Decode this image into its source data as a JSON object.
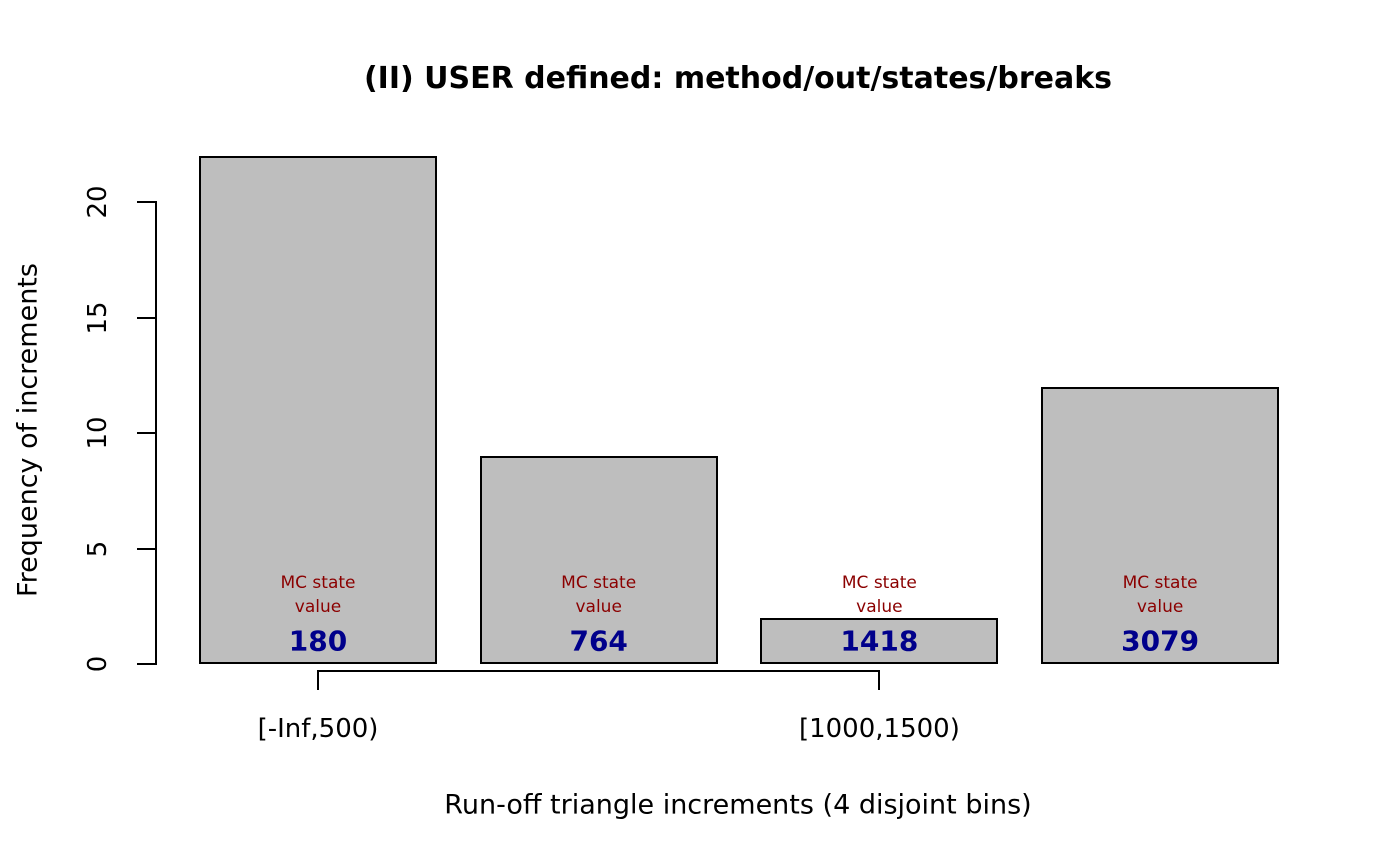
{
  "chart_data": {
    "type": "bar",
    "title": "(II) USER defined: method/out/states/breaks",
    "xlabel": "Run-off triangle increments (4 disjoint bins)",
    "ylabel": "Frequency of increments",
    "categories": [
      "[-Inf,500)",
      "",
      "[1000,1500)",
      ""
    ],
    "values": [
      22,
      9,
      2,
      12
    ],
    "yticks": [
      "0",
      "5",
      "10",
      "15",
      "20"
    ],
    "ytick_values": [
      0,
      5,
      10,
      15,
      20
    ],
    "ylim": [
      0,
      22
    ],
    "grid": false,
    "legend": "none",
    "annotations": {
      "heading_lines": [
        "MC state",
        "value"
      ],
      "values": [
        "180",
        "764",
        "1418",
        "3079"
      ]
    },
    "colors": {
      "background": "#FFFFFF",
      "bar_fill": "#BEBEBE",
      "bar_border": "#000000",
      "axis": "#000000",
      "annotation_label": "#8B0000",
      "annotation_value": "#00008B",
      "text": "#000000"
    }
  }
}
